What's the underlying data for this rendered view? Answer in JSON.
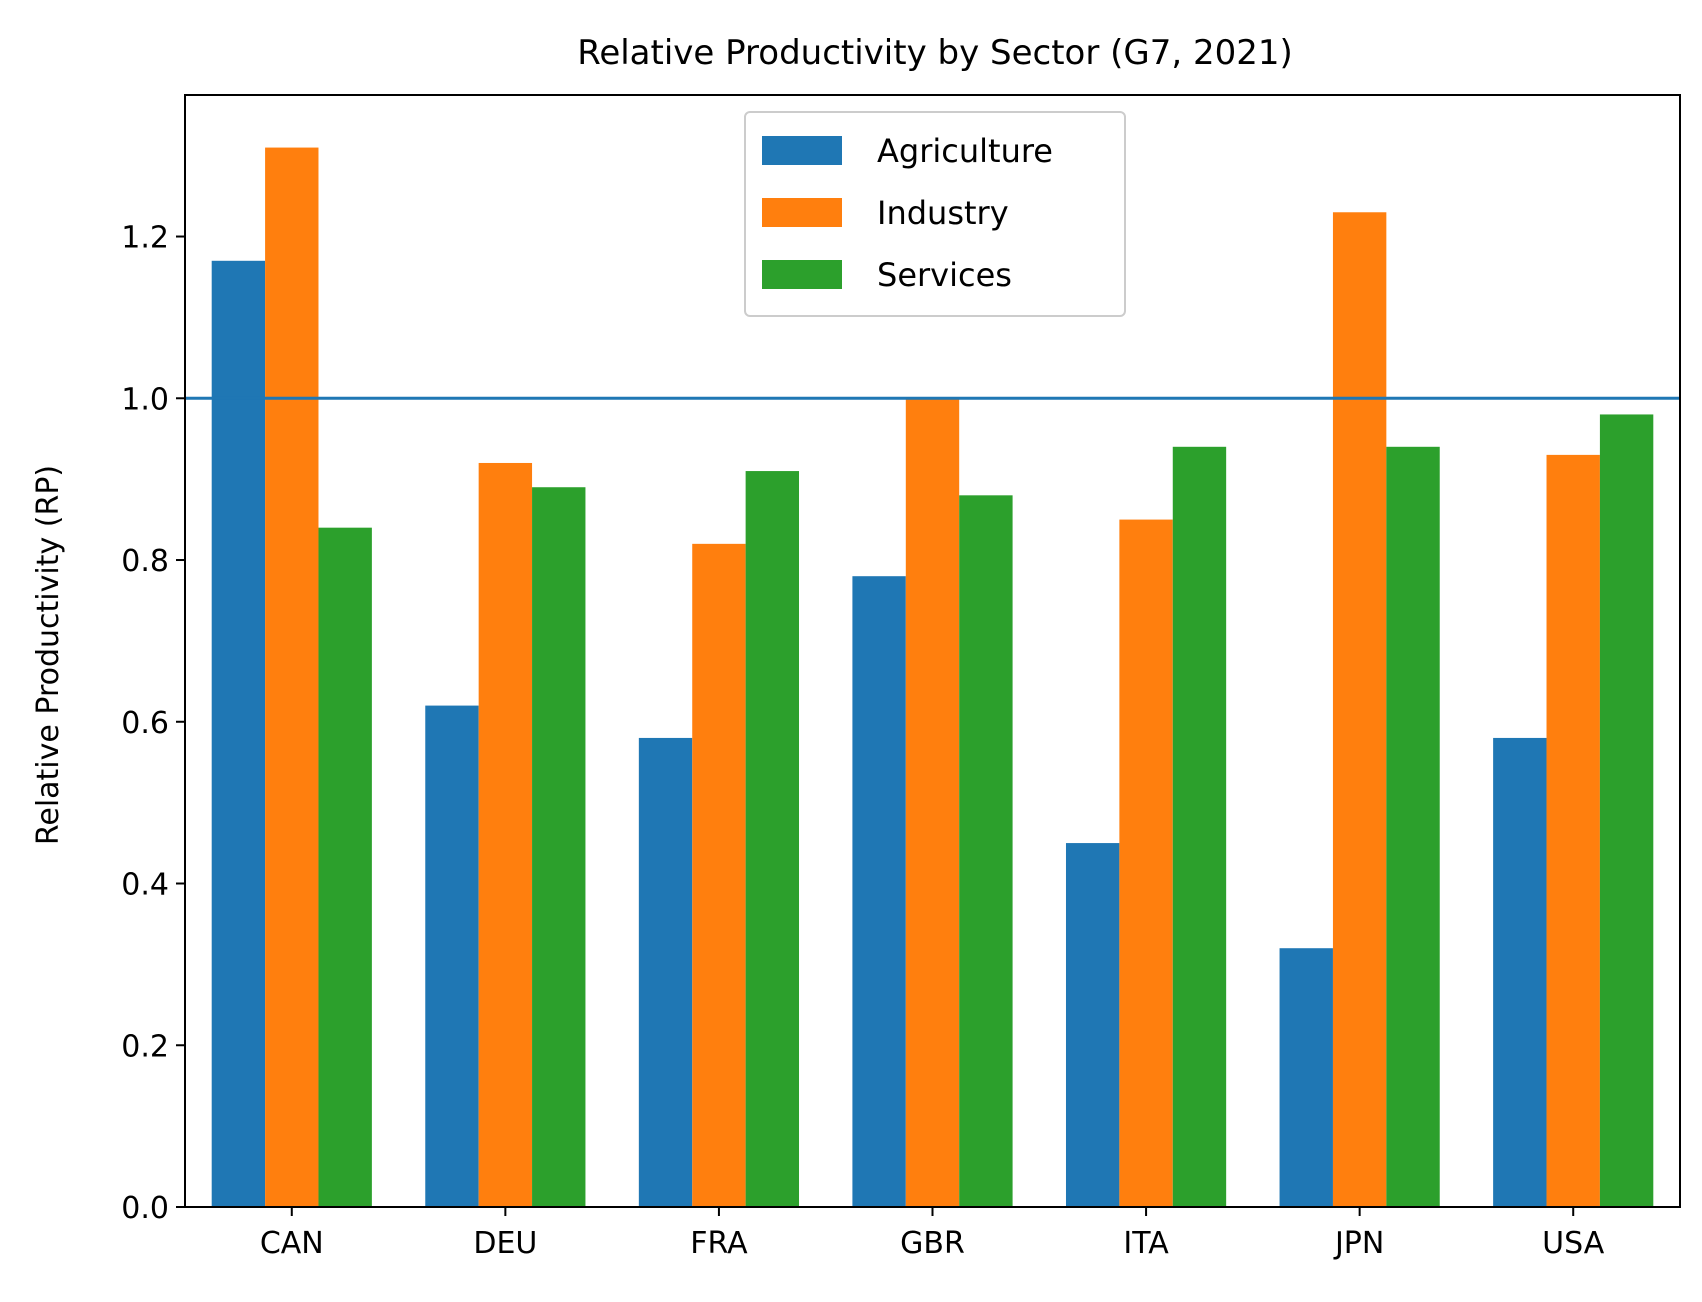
{
  "chart_data": {
    "type": "bar",
    "title": "Relative Productivity by Sector (G7, 2021)",
    "xlabel": "",
    "ylabel": "Relative Productivity (RP)",
    "categories": [
      "CAN",
      "DEU",
      "FRA",
      "GBR",
      "ITA",
      "JPN",
      "USA"
    ],
    "series": [
      {
        "name": "Agriculture",
        "color": "#1f77b4",
        "values": [
          1.17,
          0.62,
          0.58,
          0.78,
          0.45,
          0.32,
          0.58
        ]
      },
      {
        "name": "Industry",
        "color": "#ff7f0e",
        "values": [
          1.31,
          0.92,
          0.82,
          1.0,
          0.85,
          1.23,
          0.93
        ]
      },
      {
        "name": "Services",
        "color": "#2ca02c",
        "values": [
          0.84,
          0.89,
          0.91,
          0.88,
          0.94,
          0.94,
          0.98
        ]
      }
    ],
    "reference_line": {
      "y": 1.0,
      "color": "#1f77b4"
    },
    "ylim": [
      0,
      1.375
    ],
    "yticks": [
      "0.0",
      "0.2",
      "0.4",
      "0.6",
      "0.8",
      "1.0",
      "1.2"
    ],
    "legend_position": "top-center",
    "grid": false
  }
}
